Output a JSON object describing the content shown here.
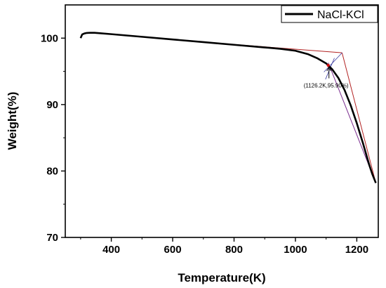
{
  "chart_data": {
    "type": "line",
    "xlabel": "Temperature(K)",
    "ylabel": "Weight(%)",
    "xlim": [
      250,
      1270
    ],
    "ylim": [
      70,
      105
    ],
    "xticks": [
      400,
      600,
      800,
      1000,
      1200
    ],
    "xtick_labels": [
      "400",
      "600",
      "800",
      "1000",
      "1200"
    ],
    "yticks": [
      70,
      80,
      90,
      100
    ],
    "ytick_labels": [
      "70",
      "80",
      "90",
      "100"
    ],
    "legend_position": "top-right",
    "grid": false,
    "series": [
      {
        "name": "NaCl-KCl",
        "color": "#000000",
        "x": [
          300,
          305,
          312,
          320,
          330,
          345,
          360,
          400,
          500,
          600,
          700,
          800,
          900,
          950,
          1000,
          1040,
          1070,
          1100,
          1120,
          1140,
          1160,
          1180,
          1200,
          1220,
          1240,
          1250,
          1262
        ],
        "y": [
          100.0,
          100.55,
          100.7,
          100.78,
          100.8,
          100.8,
          100.75,
          100.6,
          100.2,
          99.8,
          99.4,
          99.0,
          98.6,
          98.4,
          98.1,
          97.6,
          97.0,
          96.2,
          95.3,
          94.0,
          92.2,
          89.9,
          87.2,
          84.2,
          81.0,
          79.6,
          78.2
        ]
      }
    ],
    "tangent_lines": {
      "color": "#b22222",
      "baseline_tangent": [
        [
          700,
          99.4
        ],
        [
          1152,
          97.8
        ]
      ],
      "drop_tangent": [
        [
          1152,
          97.8
        ],
        [
          1262,
          78.2
        ]
      ],
      "drop_tangent_2": [
        [
          1262,
          78.2
        ],
        [
          1107,
          96.3
        ]
      ],
      "cross_lines": [
        [
          [
            1152,
            97.8
          ],
          [
            1093,
            94.9
          ]
        ],
        [
          [
            1127,
            97.0
          ],
          [
            1098,
            93.8
          ]
        ]
      ]
    },
    "annotation": {
      "text": "(1126.2K,95.90%)",
      "point": [
        1107,
        95.9
      ],
      "text_anchor": [
        1100,
        93.0
      ]
    }
  }
}
